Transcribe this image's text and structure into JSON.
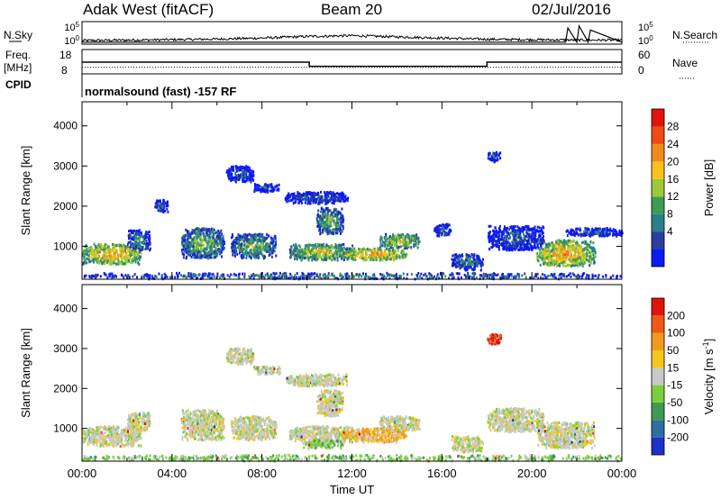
{
  "header": {
    "station": "Adak West (fitACF)",
    "beam": "Beam 20",
    "date": "02/Jul/2016"
  },
  "chart_data": [
    {
      "type": "line",
      "name": "noise-panel",
      "left_label": "N.Sky",
      "right_label": "N.Search",
      "left_ticks": [
        "10^5",
        "10^0"
      ],
      "right_ticks": [
        "10^5",
        "10^0"
      ],
      "x_range_hours": [
        0,
        24
      ],
      "series": [
        {
          "name": "N.Sky",
          "style": "solid",
          "x": [
            0,
            2,
            4,
            6,
            8,
            10,
            12,
            14,
            16,
            18,
            20,
            22,
            24
          ],
          "y": [
            0.18,
            0.2,
            0.22,
            0.25,
            0.3,
            0.38,
            0.42,
            0.36,
            0.3,
            0.24,
            0.22,
            0.2,
            0.2
          ]
        },
        {
          "name": "N.Search",
          "style": "dotted",
          "x": [
            0,
            21.5,
            21.6,
            22.0,
            22.1,
            22.5,
            22.6,
            24
          ],
          "y": [
            0.1,
            0.1,
            0.8,
            0.1,
            0.9,
            0.1,
            0.7,
            0.1
          ]
        }
      ]
    },
    {
      "type": "line",
      "name": "freq-panel",
      "left_label": "Freq. [MHz]",
      "right_label": "Nave",
      "bottom_label": "CPID",
      "left_ticks": [
        "18",
        "8"
      ],
      "right_ticks": [
        "60",
        "0"
      ],
      "x_range_hours": [
        0,
        24
      ],
      "series": [
        {
          "name": "Freq.",
          "style": "solid",
          "x": [
            0,
            10.1,
            10.1,
            18.0,
            18.0,
            24
          ],
          "y": [
            12.8,
            12.8,
            11.1,
            11.1,
            12.8,
            12.8
          ]
        },
        {
          "name": "Nave",
          "style": "dotted",
          "x": [
            0,
            24
          ],
          "y": [
            16,
            16
          ]
        }
      ],
      "program": "normalsound (fast) -157 RF"
    },
    {
      "type": "heatmap",
      "name": "power-panel",
      "ylabel": "Slant Range [km]",
      "ylim": [
        180,
        4600
      ],
      "yticks": [
        1000,
        2000,
        3000,
        4000
      ],
      "xlim": [
        0,
        24
      ],
      "colorbar": {
        "label": "Power [dB]",
        "ticks": [
          "4",
          "8",
          "12",
          "16",
          "20",
          "24",
          "28"
        ],
        "colors": [
          "#0b1cf0",
          "#2c3d9d",
          "#2a7f8c",
          "#3f9b55",
          "#9cc935",
          "#f6c21a",
          "#ef8b1c",
          "#ee4a14",
          "#e0140a"
        ]
      },
      "echo_regions": [
        {
          "t": [
            0.0,
            2.6
          ],
          "r": [
            550,
            1050
          ],
          "level": 6
        },
        {
          "t": [
            2.0,
            3.0
          ],
          "r": [
            900,
            1400
          ],
          "level": 3
        },
        {
          "t": [
            3.2,
            3.8
          ],
          "r": [
            1850,
            2150
          ],
          "level": 2
        },
        {
          "t": [
            4.4,
            6.3
          ],
          "r": [
            700,
            1450
          ],
          "level": 4
        },
        {
          "t": [
            6.6,
            8.6
          ],
          "r": [
            700,
            1300
          ],
          "level": 4
        },
        {
          "t": [
            6.4,
            7.6
          ],
          "r": [
            2600,
            3000
          ],
          "level": 2
        },
        {
          "t": [
            7.6,
            8.8
          ],
          "r": [
            2350,
            2550
          ],
          "level": 2
        },
        {
          "t": [
            9.0,
            11.8
          ],
          "r": [
            2050,
            2350
          ],
          "level": 2
        },
        {
          "t": [
            10.4,
            11.6
          ],
          "r": [
            1300,
            1950
          ],
          "level": 4
        },
        {
          "t": [
            9.2,
            12.0
          ],
          "r": [
            650,
            1050
          ],
          "level": 5
        },
        {
          "t": [
            11.4,
            14.4
          ],
          "r": [
            650,
            950
          ],
          "level": 6
        },
        {
          "t": [
            13.2,
            15.0
          ],
          "r": [
            950,
            1300
          ],
          "level": 5
        },
        {
          "t": [
            15.6,
            16.4
          ],
          "r": [
            1250,
            1550
          ],
          "level": 2
        },
        {
          "t": [
            16.4,
            17.8
          ],
          "r": [
            400,
            800
          ],
          "level": 3
        },
        {
          "t": [
            18.0,
            20.5
          ],
          "r": [
            900,
            1500
          ],
          "level": 2
        },
        {
          "t": [
            20.2,
            22.8
          ],
          "r": [
            500,
            1150
          ],
          "level": 6
        },
        {
          "t": [
            21.5,
            24.0
          ],
          "r": [
            1250,
            1450
          ],
          "level": 2
        },
        {
          "t": [
            18.0,
            18.6
          ],
          "r": [
            3100,
            3350
          ],
          "level": 2
        },
        {
          "t": [
            0.0,
            24.0
          ],
          "r": [
            180,
            330
          ],
          "level": 3
        }
      ]
    },
    {
      "type": "heatmap",
      "name": "velocity-panel",
      "ylabel": "Slant Range [km]",
      "xlabel": "Time UT",
      "ylim": [
        180,
        4600
      ],
      "yticks": [
        1000,
        2000,
        3000,
        4000
      ],
      "xlim": [
        0,
        24
      ],
      "xticks": [
        "00:00",
        "04:00",
        "08:00",
        "12:00",
        "16:00",
        "20:00",
        "00:00"
      ],
      "colorbar": {
        "label": "Velocity [m s^-1]",
        "ticks": [
          "200",
          "100",
          "50",
          "15",
          "-15",
          "-50",
          "-100",
          "-200"
        ],
        "colors": [
          "#1a33c8",
          "#2c6fa0",
          "#3d9a52",
          "#7ad03c",
          "#c8c8c8",
          "#f6c61b",
          "#f29a1c",
          "#ee5a14",
          "#e0140a"
        ]
      },
      "echo_regions": [
        {
          "t": [
            0.0,
            2.6
          ],
          "r": [
            550,
            1050
          ],
          "code": "gray"
        },
        {
          "t": [
            2.0,
            3.0
          ],
          "r": [
            900,
            1400
          ],
          "code": "gray"
        },
        {
          "t": [
            4.4,
            6.3
          ],
          "r": [
            700,
            1450
          ],
          "code": "gray"
        },
        {
          "t": [
            6.6,
            8.6
          ],
          "r": [
            700,
            1300
          ],
          "code": "gray"
        },
        {
          "t": [
            6.4,
            7.6
          ],
          "r": [
            2600,
            3000
          ],
          "code": "gray"
        },
        {
          "t": [
            7.6,
            8.8
          ],
          "r": [
            2350,
            2550
          ],
          "code": "gray"
        },
        {
          "t": [
            9.0,
            11.8
          ],
          "r": [
            2050,
            2350
          ],
          "code": "gray"
        },
        {
          "t": [
            10.4,
            11.6
          ],
          "r": [
            1300,
            1950
          ],
          "code": "gray"
        },
        {
          "t": [
            9.2,
            12.0
          ],
          "r": [
            650,
            1050
          ],
          "code": "gray"
        },
        {
          "t": [
            11.6,
            14.4
          ],
          "r": [
            650,
            1000
          ],
          "code": "orange"
        },
        {
          "t": [
            9.8,
            11.6
          ],
          "r": [
            500,
            700
          ],
          "code": "green"
        },
        {
          "t": [
            13.2,
            15.0
          ],
          "r": [
            950,
            1300
          ],
          "code": "gray"
        },
        {
          "t": [
            16.4,
            17.8
          ],
          "r": [
            400,
            800
          ],
          "code": "gray"
        },
        {
          "t": [
            18.0,
            20.5
          ],
          "r": [
            900,
            1500
          ],
          "code": "gray"
        },
        {
          "t": [
            20.2,
            22.8
          ],
          "r": [
            500,
            1150
          ],
          "code": "gray"
        },
        {
          "t": [
            18.0,
            18.6
          ],
          "r": [
            3100,
            3350
          ],
          "code": "red"
        },
        {
          "t": [
            0.0,
            24.0
          ],
          "r": [
            180,
            330
          ],
          "code": "green"
        }
      ]
    }
  ]
}
